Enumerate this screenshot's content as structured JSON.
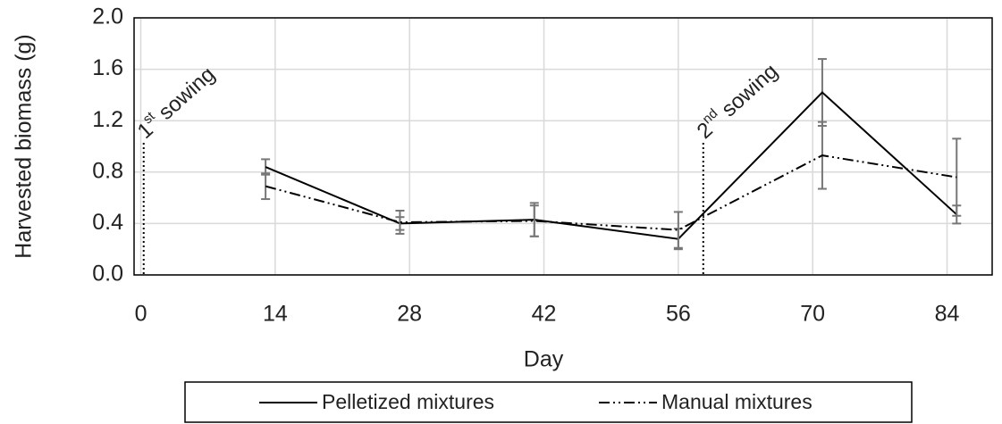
{
  "chart_data": {
    "type": "line",
    "xlabel": "Day",
    "ylabel": "Harvested biomass (g)",
    "xlim": [
      -0.7,
      88.7
    ],
    "xticks": [
      0,
      14,
      28,
      42,
      56,
      70,
      84
    ],
    "ylim": [
      0,
      2
    ],
    "yticks": [
      {
        "value": 0,
        "label": "0.0"
      },
      0.4,
      0.8,
      1.2,
      1.6,
      {
        "value": 2,
        "label": "2.0"
      }
    ],
    "grid": true,
    "legend": "bottom",
    "series": [
      {
        "name": "Pelletized mixtures",
        "color": "#000000",
        "dash": "solid",
        "x": [
          13,
          27,
          41,
          56,
          71,
          85
        ],
        "values": [
          0.84,
          0.4,
          0.43,
          0.28,
          1.42,
          0.47
        ],
        "errors": [
          0.06,
          0.05,
          0.13,
          0.08,
          0.26,
          0.07
        ]
      },
      {
        "name": "Manual mixtures",
        "color": "#000000",
        "dash": "dashdotdot",
        "x": [
          13,
          27,
          41,
          56,
          71,
          85
        ],
        "values": [
          0.69,
          0.41,
          0.42,
          0.35,
          0.93,
          0.76
        ],
        "errors": [
          0.1,
          0.09,
          0.12,
          0.14,
          0.26,
          0.3
        ]
      }
    ],
    "annotations": [
      {
        "base": "1",
        "sup": "st",
        "text": " sowing",
        "x": 0.3
      },
      {
        "base": "2",
        "sup": "nd",
        "text": " sowing",
        "x": 58.6
      }
    ]
  }
}
